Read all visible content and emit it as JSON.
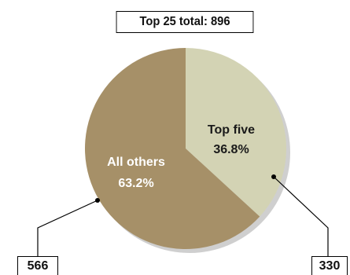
{
  "chart_data": {
    "type": "pie",
    "title": "Top 25 total: 896",
    "slices": [
      {
        "name": "Top five",
        "value": 330,
        "percent_label": "36.8%",
        "value_label": "330",
        "color": "#d3d3b4",
        "label_color": "#1a1a1a"
      },
      {
        "name": "All others",
        "value": 566,
        "percent_label": "63.2%",
        "value_label": "566",
        "color": "#a69068",
        "label_color": "#ffffff"
      }
    ],
    "total": 896
  }
}
